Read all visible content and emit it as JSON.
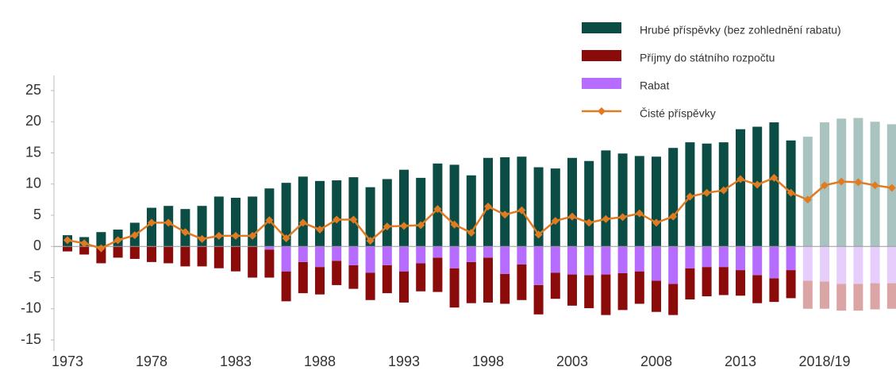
{
  "chart_data": {
    "type": "bar",
    "categories": [
      "1973",
      null,
      null,
      null,
      null,
      "1978",
      null,
      null,
      null,
      null,
      "1983",
      null,
      null,
      null,
      null,
      "1988",
      null,
      null,
      null,
      null,
      "1993",
      null,
      null,
      null,
      null,
      "1998",
      null,
      null,
      null,
      null,
      "2003",
      null,
      null,
      null,
      null,
      "2008",
      null,
      null,
      null,
      null,
      "2013",
      null,
      null,
      null,
      null,
      "2018/19",
      null,
      null,
      null,
      null
    ],
    "series": [
      {
        "name": "Hrubé příspěvky (bez zohlednění rabatu)",
        "color": "#0b4d45",
        "forecast_color": "#a9c4c0",
        "kind": "bar",
        "values": [
          1.8,
          1.5,
          2.3,
          2.7,
          3.8,
          6.2,
          6.5,
          6.0,
          6.5,
          8.0,
          7.8,
          8.0,
          9.3,
          10.2,
          11.2,
          10.5,
          10.6,
          11.1,
          9.5,
          10.8,
          12.3,
          11.0,
          13.3,
          13.1,
          11.4,
          14.2,
          14.3,
          14.4,
          12.7,
          12.5,
          14.2,
          13.7,
          15.4,
          14.9,
          14.5,
          14.4,
          15.8,
          16.7,
          16.5,
          16.7,
          18.8,
          19.2,
          19.9,
          17.0,
          17.6,
          19.9,
          20.5,
          20.6,
          20.0,
          19.6
        ]
      },
      {
        "name": "Příjmy do státního rozpočtu",
        "color": "#8b0a0a",
        "forecast_color": "#dba5a5",
        "kind": "stack-below-rebate",
        "values": [
          -0.8,
          -1.3,
          -2.7,
          -1.8,
          -2.0,
          -2.5,
          -2.7,
          -3.2,
          -3.2,
          -3.5,
          -4.0,
          -5.0,
          -4.5,
          -4.8,
          -5.0,
          -4.4,
          -3.9,
          -3.8,
          -4.4,
          -4.5,
          -5.0,
          -4.5,
          -5.5,
          -6.3,
          -6.6,
          -7.2,
          -4.8,
          -5.7,
          -4.7,
          -4.2,
          -5.0,
          -5.3,
          -6.5,
          -5.9,
          -5.2,
          -5.0,
          -5.0,
          -5.0,
          -4.7,
          -4.5,
          -4.1,
          -4.5,
          -3.8,
          -4.5,
          -4.5,
          -4.4,
          -4.3,
          -4.3,
          -4.2,
          -4.1
        ]
      },
      {
        "name": "Rabat",
        "color": "#b56cff",
        "forecast_color": "#e6cdfb",
        "kind": "rebate",
        "values": [
          0,
          0,
          0,
          0,
          0,
          0,
          0,
          0,
          0,
          0,
          0,
          0,
          -0.5,
          -4.0,
          -2.5,
          -3.3,
          -2.3,
          -3.0,
          -4.2,
          -3.0,
          -4.0,
          -2.7,
          -1.8,
          -3.5,
          -2.5,
          -1.8,
          -4.4,
          -2.9,
          -6.2,
          -4.2,
          -4.5,
          -4.6,
          -4.5,
          -4.3,
          -4.0,
          -5.5,
          -6.0,
          -3.5,
          -3.3,
          -3.3,
          -3.8,
          -4.6,
          -5.1,
          -3.8,
          -5.5,
          -5.6,
          -6.0,
          -6.0,
          -5.9,
          -5.9
        ]
      },
      {
        "name": "Čisté příspěvky",
        "color": "#e07b22",
        "forecast_color": "#e07b22",
        "kind": "line",
        "values": [
          1.0,
          0.5,
          -0.3,
          1.0,
          1.8,
          3.8,
          3.8,
          2.3,
          1.2,
          1.7,
          1.7,
          1.7,
          4.2,
          1.3,
          3.8,
          2.7,
          4.3,
          4.3,
          0.9,
          3.2,
          3.3,
          3.4,
          6.0,
          3.5,
          2.2,
          6.4,
          5.1,
          5.8,
          1.9,
          4.1,
          4.8,
          3.8,
          4.4,
          4.7,
          5.3,
          3.8,
          4.8,
          8.0,
          8.6,
          9.0,
          10.8,
          9.9,
          11.0,
          8.6,
          7.5,
          9.8,
          10.4,
          10.3,
          9.8,
          9.4
        ]
      }
    ],
    "forecast_start": 44,
    "ylim": [
      -15,
      25
    ],
    "yticks": [
      -15,
      -10,
      -5,
      0,
      5,
      10,
      15,
      20,
      25
    ],
    "legend": "top-right",
    "grid": false
  }
}
